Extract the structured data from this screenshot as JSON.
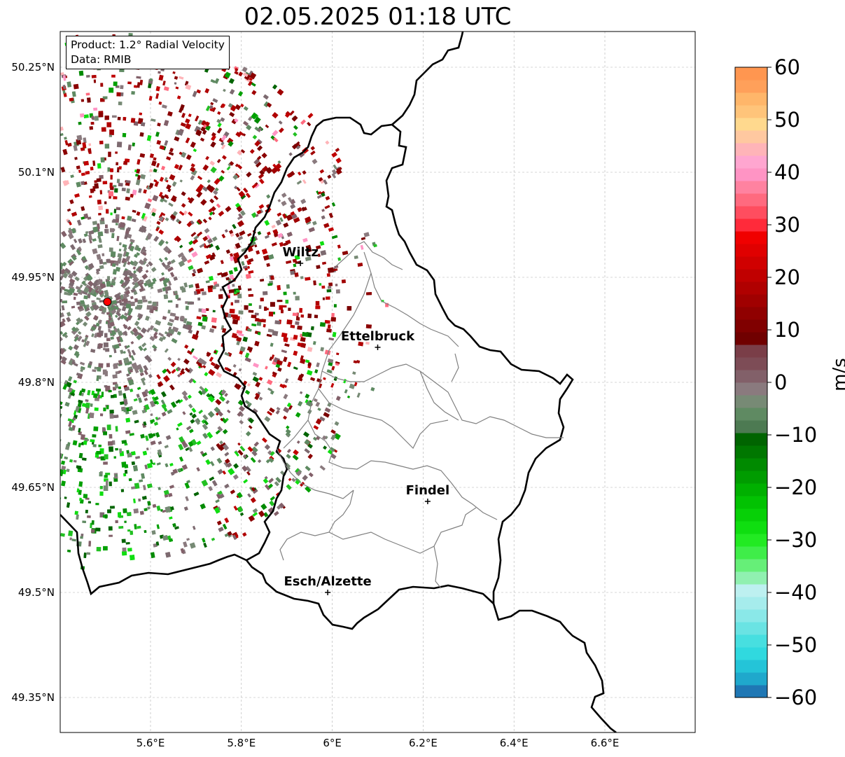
{
  "title": "02.05.2025 01:18 UTC",
  "info": {
    "product": "Product: 1.2° Radial Velocity",
    "data": "Data: RMIB"
  },
  "map": {
    "lon_range": [
      5.4,
      6.8
    ],
    "lat_range": [
      49.3,
      50.3
    ],
    "lon_ticks": [
      "5.6°E",
      "5.8°E",
      "6°E",
      "6.2°E",
      "6.4°E",
      "6.6°E"
    ],
    "lon_tick_values": [
      5.6,
      5.8,
      6.0,
      6.2,
      6.4,
      6.6
    ],
    "lat_ticks": [
      "50.25°N",
      "50.1°N",
      "49.95°N",
      "49.8°N",
      "49.65°N",
      "49.5°N",
      "49.35°N"
    ],
    "lat_tick_values": [
      50.25,
      50.1,
      49.95,
      49.8,
      49.65,
      49.5,
      49.35
    ],
    "cities": [
      {
        "name": "Wiltz",
        "lon": 5.93,
        "lat": 49.97
      },
      {
        "name": "Ettelbruck",
        "lon": 6.1,
        "lat": 49.85
      },
      {
        "name": "Findel",
        "lon": 6.21,
        "lat": 49.63
      },
      {
        "name": "Esch/Alzette",
        "lon": 5.99,
        "lat": 49.5
      }
    ],
    "radar_site": {
      "lon": 5.505,
      "lat": 49.915
    },
    "gridlines": true
  },
  "colorbar": {
    "unit": "m/s",
    "range": [
      -60,
      60
    ],
    "tick_labels": [
      "60",
      "50",
      "40",
      "30",
      "20",
      "10",
      "0",
      "−10",
      "−20",
      "−30",
      "−40",
      "−50",
      "−60"
    ],
    "tick_values": [
      60,
      50,
      40,
      30,
      20,
      10,
      0,
      -10,
      -20,
      -30,
      -40,
      -50,
      -60
    ],
    "colors": [
      "#1f77b4",
      "#1fa8cc",
      "#24c4d8",
      "#30d9df",
      "#47dfe0",
      "#6ae3e3",
      "#8ae8e8",
      "#a6ecec",
      "#bdf0f0",
      "#90f0b0",
      "#66ef78",
      "#3fed49",
      "#22ea22",
      "#0fde10",
      "#07d007",
      "#02c202",
      "#00b000",
      "#009c00",
      "#008a00",
      "#007700",
      "#006400",
      "#4d7a52",
      "#5f8a62",
      "#778a75",
      "#8a7a7e",
      "#826069",
      "#7d4c56",
      "#7a3e48",
      "#700000",
      "#800000",
      "#900000",
      "#a00000",
      "#b00000",
      "#c00000",
      "#d00000",
      "#e00000",
      "#f00000",
      "#ff2a3a",
      "#ff4d5f",
      "#ff6a7f",
      "#ff82a0",
      "#ff94c4",
      "#ffa6d0",
      "#ffb4b8",
      "#ffc8a0",
      "#ffd98e",
      "#ffc47a",
      "#ffb66a",
      "#ffa05a",
      "#ff9650"
    ]
  }
}
